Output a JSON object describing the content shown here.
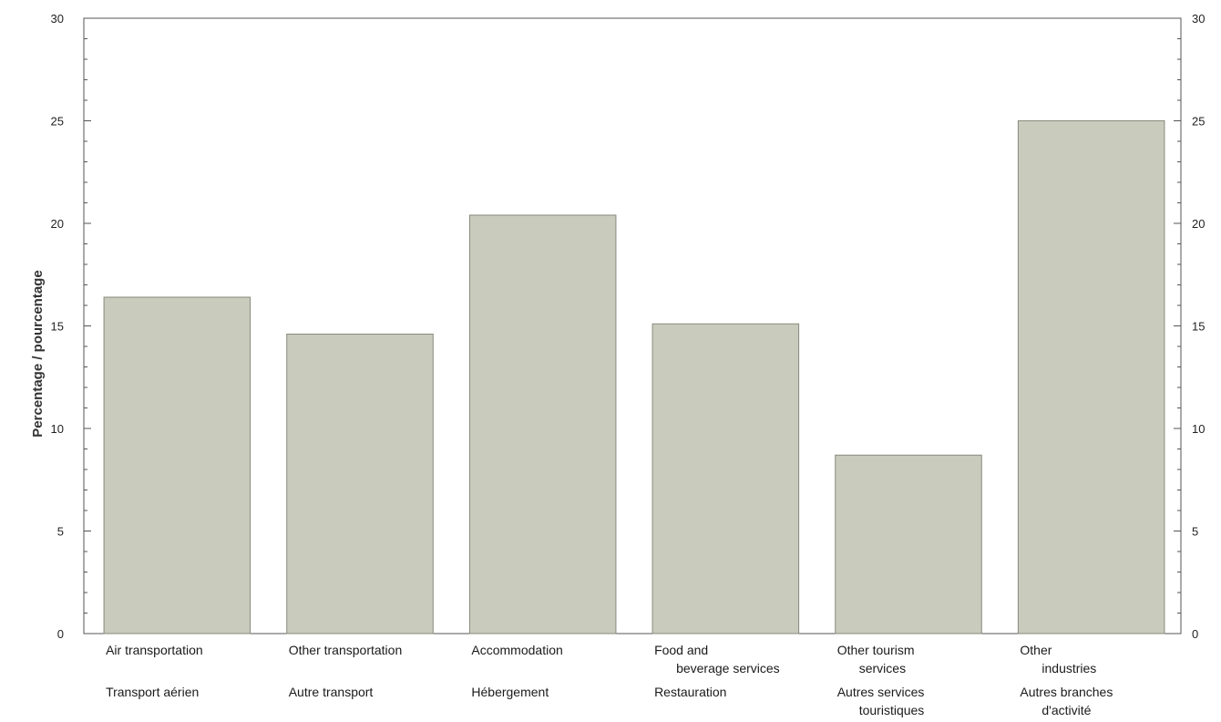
{
  "chart_data": {
    "type": "bar",
    "ylabel": "Percentage / pourcentage",
    "ylim": [
      0,
      30
    ],
    "yticks": [
      "0",
      "5",
      "10",
      "15",
      "20",
      "25",
      "30"
    ],
    "categories": [
      {
        "en": [
          "Air transportation"
        ],
        "fr": [
          "Transport aérien"
        ]
      },
      {
        "en": [
          "Other transportation"
        ],
        "fr": [
          "Autre transport"
        ]
      },
      {
        "en": [
          "Accommodation"
        ],
        "fr": [
          "Hébergement"
        ]
      },
      {
        "en": [
          "Food and",
          "beverage services"
        ],
        "fr": [
          "Restauration"
        ]
      },
      {
        "en": [
          "Other tourism",
          "services"
        ],
        "fr": [
          "Autres services",
          "touristiques"
        ]
      },
      {
        "en": [
          "Other",
          "industries"
        ],
        "fr": [
          "Autres branches",
          "d'activité"
        ]
      }
    ],
    "values": [
      16.4,
      14.6,
      20.4,
      15.1,
      8.7,
      25.0
    ],
    "bar_color": "#c9cbbc",
    "bar_border": "#888a7e",
    "grid": false,
    "legend": "none"
  }
}
